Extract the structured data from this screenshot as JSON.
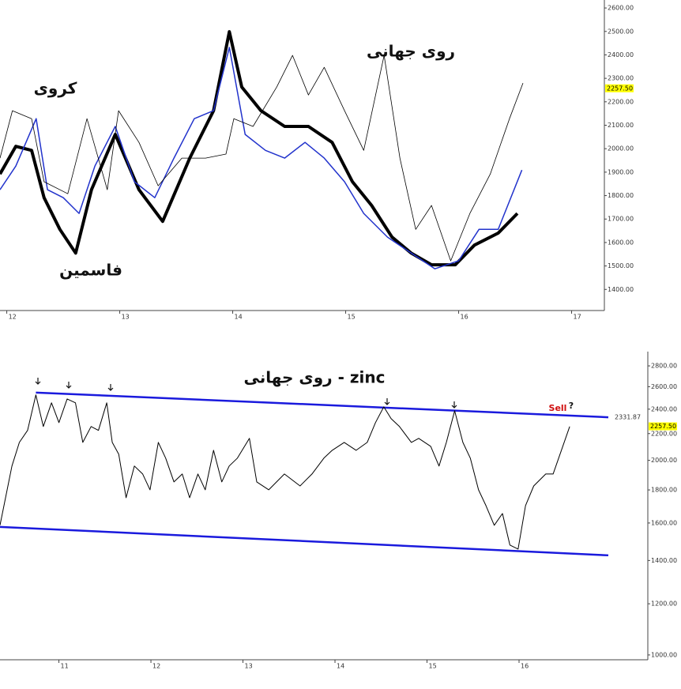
{
  "chart_data": [
    {
      "type": "line",
      "annotations": [
        "روی جهانی",
        "کروی",
        "فاسمین"
      ],
      "xlim": [
        11.94,
        17.29
      ],
      "xticks": [
        12,
        13,
        14,
        15,
        16,
        17
      ],
      "ylim": [
        1310,
        2634
      ],
      "yticks": [
        {
          "value": 2600,
          "label": "2600.00"
        },
        {
          "value": 2500,
          "label": "2500.00"
        },
        {
          "value": 2400,
          "label": "2400.00"
        },
        {
          "value": 2300,
          "label": "2300.00"
        },
        {
          "value": 2200,
          "label": "2200.00"
        },
        {
          "value": 2100,
          "label": "2100.00"
        },
        {
          "value": 2000,
          "label": "2000.00"
        },
        {
          "value": 1900,
          "label": "1900.00"
        },
        {
          "value": 1800,
          "label": "1800.00"
        },
        {
          "value": 1700,
          "label": "1700.00"
        },
        {
          "value": 1600,
          "label": "1600.00"
        },
        {
          "value": 1500,
          "label": "1500.00"
        },
        {
          "value": 1400,
          "label": "1400.00"
        }
      ],
      "price_tag": {
        "value": 2257.5,
        "label": "2257.50"
      },
      "series": [
        {
          "color": "#000000",
          "width": 4,
          "x": [
            11.94,
            12.08,
            12.22,
            12.33,
            12.47,
            12.61,
            12.75,
            12.96,
            13.17,
            13.38,
            13.62,
            13.83,
            13.97,
            14.08,
            14.25,
            14.46,
            14.67,
            14.88,
            15.06,
            15.23,
            15.41,
            15.58,
            15.76,
            15.97,
            16.14,
            16.35,
            16.52
          ],
          "values": [
            1892,
            2010,
            1993,
            1791,
            1656,
            1555,
            1825,
            2061,
            1825,
            1690,
            1960,
            2162,
            2499,
            2263,
            2162,
            2095,
            2095,
            2027,
            1859,
            1758,
            1623,
            1555,
            1505,
            1505,
            1589,
            1640,
            1724
          ]
        },
        {
          "color": "#2233cc",
          "width": 1.5,
          "x": [
            11.94,
            12.08,
            12.26,
            12.36,
            12.5,
            12.64,
            12.78,
            12.96,
            13.13,
            13.31,
            13.48,
            13.66,
            13.83,
            13.97,
            14.11,
            14.29,
            14.46,
            14.64,
            14.81,
            14.99,
            15.16,
            15.37,
            15.58,
            15.79,
            16.0,
            16.18,
            16.35,
            16.56
          ],
          "values": [
            1825,
            1926,
            2128,
            1825,
            1791,
            1724,
            1926,
            2095,
            1859,
            1791,
            1960,
            2128,
            2162,
            2432,
            2061,
            1993,
            1960,
            2027,
            1960,
            1859,
            1724,
            1623,
            1555,
            1488,
            1522,
            1656,
            1656,
            1909
          ]
        },
        {
          "color": "#000000",
          "width": 0.8,
          "x": [
            11.94,
            12.05,
            12.22,
            12.33,
            12.54,
            12.71,
            12.89,
            12.99,
            13.17,
            13.34,
            13.55,
            13.76,
            13.94,
            14.01,
            14.18,
            14.39,
            14.53,
            14.67,
            14.81,
            14.99,
            15.16,
            15.34,
            15.48,
            15.62,
            15.76,
            15.93,
            16.1,
            16.28,
            16.45,
            16.57
          ],
          "values": [
            1960,
            2162,
            2128,
            1859,
            1808,
            2128,
            1825,
            2162,
            2027,
            1842,
            1960,
            1960,
            1977,
            2128,
            2095,
            2263,
            2398,
            2229,
            2347,
            2162,
            1993,
            2398,
            1960,
            1656,
            1758,
            1522,
            1724,
            1892,
            2128,
            2280
          ]
        }
      ]
    },
    {
      "type": "line",
      "title": "روی جهانی - zinc",
      "annotations": [
        "Sell",
        "?"
      ],
      "log": true,
      "xlim": [
        10.36,
        16.97
      ],
      "xticks": [
        11,
        12,
        13,
        14,
        15,
        16
      ],
      "ylim": [
        983,
        2946
      ],
      "yticks": [
        {
          "value": 2800,
          "label": "2800.00"
        },
        {
          "value": 2600,
          "label": "2600.00"
        },
        {
          "value": 2400,
          "label": "2400.00"
        },
        {
          "value": 2200,
          "label": "2200.00"
        },
        {
          "value": 2000,
          "label": "2000.00"
        },
        {
          "value": 1800,
          "label": "1800.00"
        },
        {
          "value": 1600,
          "label": "1600.00"
        },
        {
          "value": 1400,
          "label": "1400.00"
        },
        {
          "value": 1200,
          "label": "1200.00"
        },
        {
          "value": 1000,
          "label": "1000.00"
        }
      ],
      "price_tag": {
        "value": 2257.5,
        "label": "2257.50"
      },
      "trend_lines": [
        {
          "color": "#1a1add",
          "x": [
            10.75,
            16.97
          ],
          "values": [
            2546,
            2331.87
          ],
          "end_label": "2331.87"
        },
        {
          "color": "#1a1add",
          "x": [
            10.36,
            16.97
          ],
          "values": [
            1578,
            1426
          ]
        }
      ],
      "series": [
        {
          "color": "#000000",
          "width": 1,
          "x": [
            10.36,
            10.49,
            10.57,
            10.66,
            10.75,
            10.83,
            10.92,
            11.0,
            11.09,
            11.18,
            11.26,
            11.35,
            11.43,
            11.52,
            11.58,
            11.65,
            11.73,
            11.82,
            11.91,
            11.99,
            12.08,
            12.16,
            12.25,
            12.34,
            12.42,
            12.51,
            12.59,
            12.68,
            12.77,
            12.85,
            12.94,
            13.07,
            13.15,
            13.28,
            13.45,
            13.62,
            13.75,
            13.88,
            13.97,
            14.1,
            14.23,
            14.35,
            14.44,
            14.53,
            14.61,
            14.7,
            14.83,
            14.91,
            15.04,
            15.13,
            15.21,
            15.3,
            15.39,
            15.47,
            15.56,
            15.64,
            15.73,
            15.82,
            15.9,
            15.99,
            16.07,
            16.16,
            16.29,
            16.37,
            16.46,
            16.55
          ],
          "values": [
            1587,
            1960,
            2132,
            2225,
            2525,
            2256,
            2455,
            2288,
            2489,
            2455,
            2132,
            2256,
            2225,
            2455,
            2132,
            2044,
            1751,
            1960,
            1905,
            1801,
            2132,
            2016,
            1852,
            1905,
            1751,
            1905,
            1801,
            2073,
            1852,
            1960,
            2016,
            2163,
            1852,
            1801,
            1905,
            1826,
            1905,
            2016,
            2073,
            2132,
            2073,
            2132,
            2288,
            2420,
            2320,
            2256,
            2132,
            2163,
            2102,
            1960,
            2132,
            2386,
            2132,
            2016,
            1801,
            1702,
            1587,
            1655,
            1479,
            1458,
            1702,
            1826,
            1905,
            1905,
            2073,
            2256
          ]
        }
      ]
    }
  ]
}
